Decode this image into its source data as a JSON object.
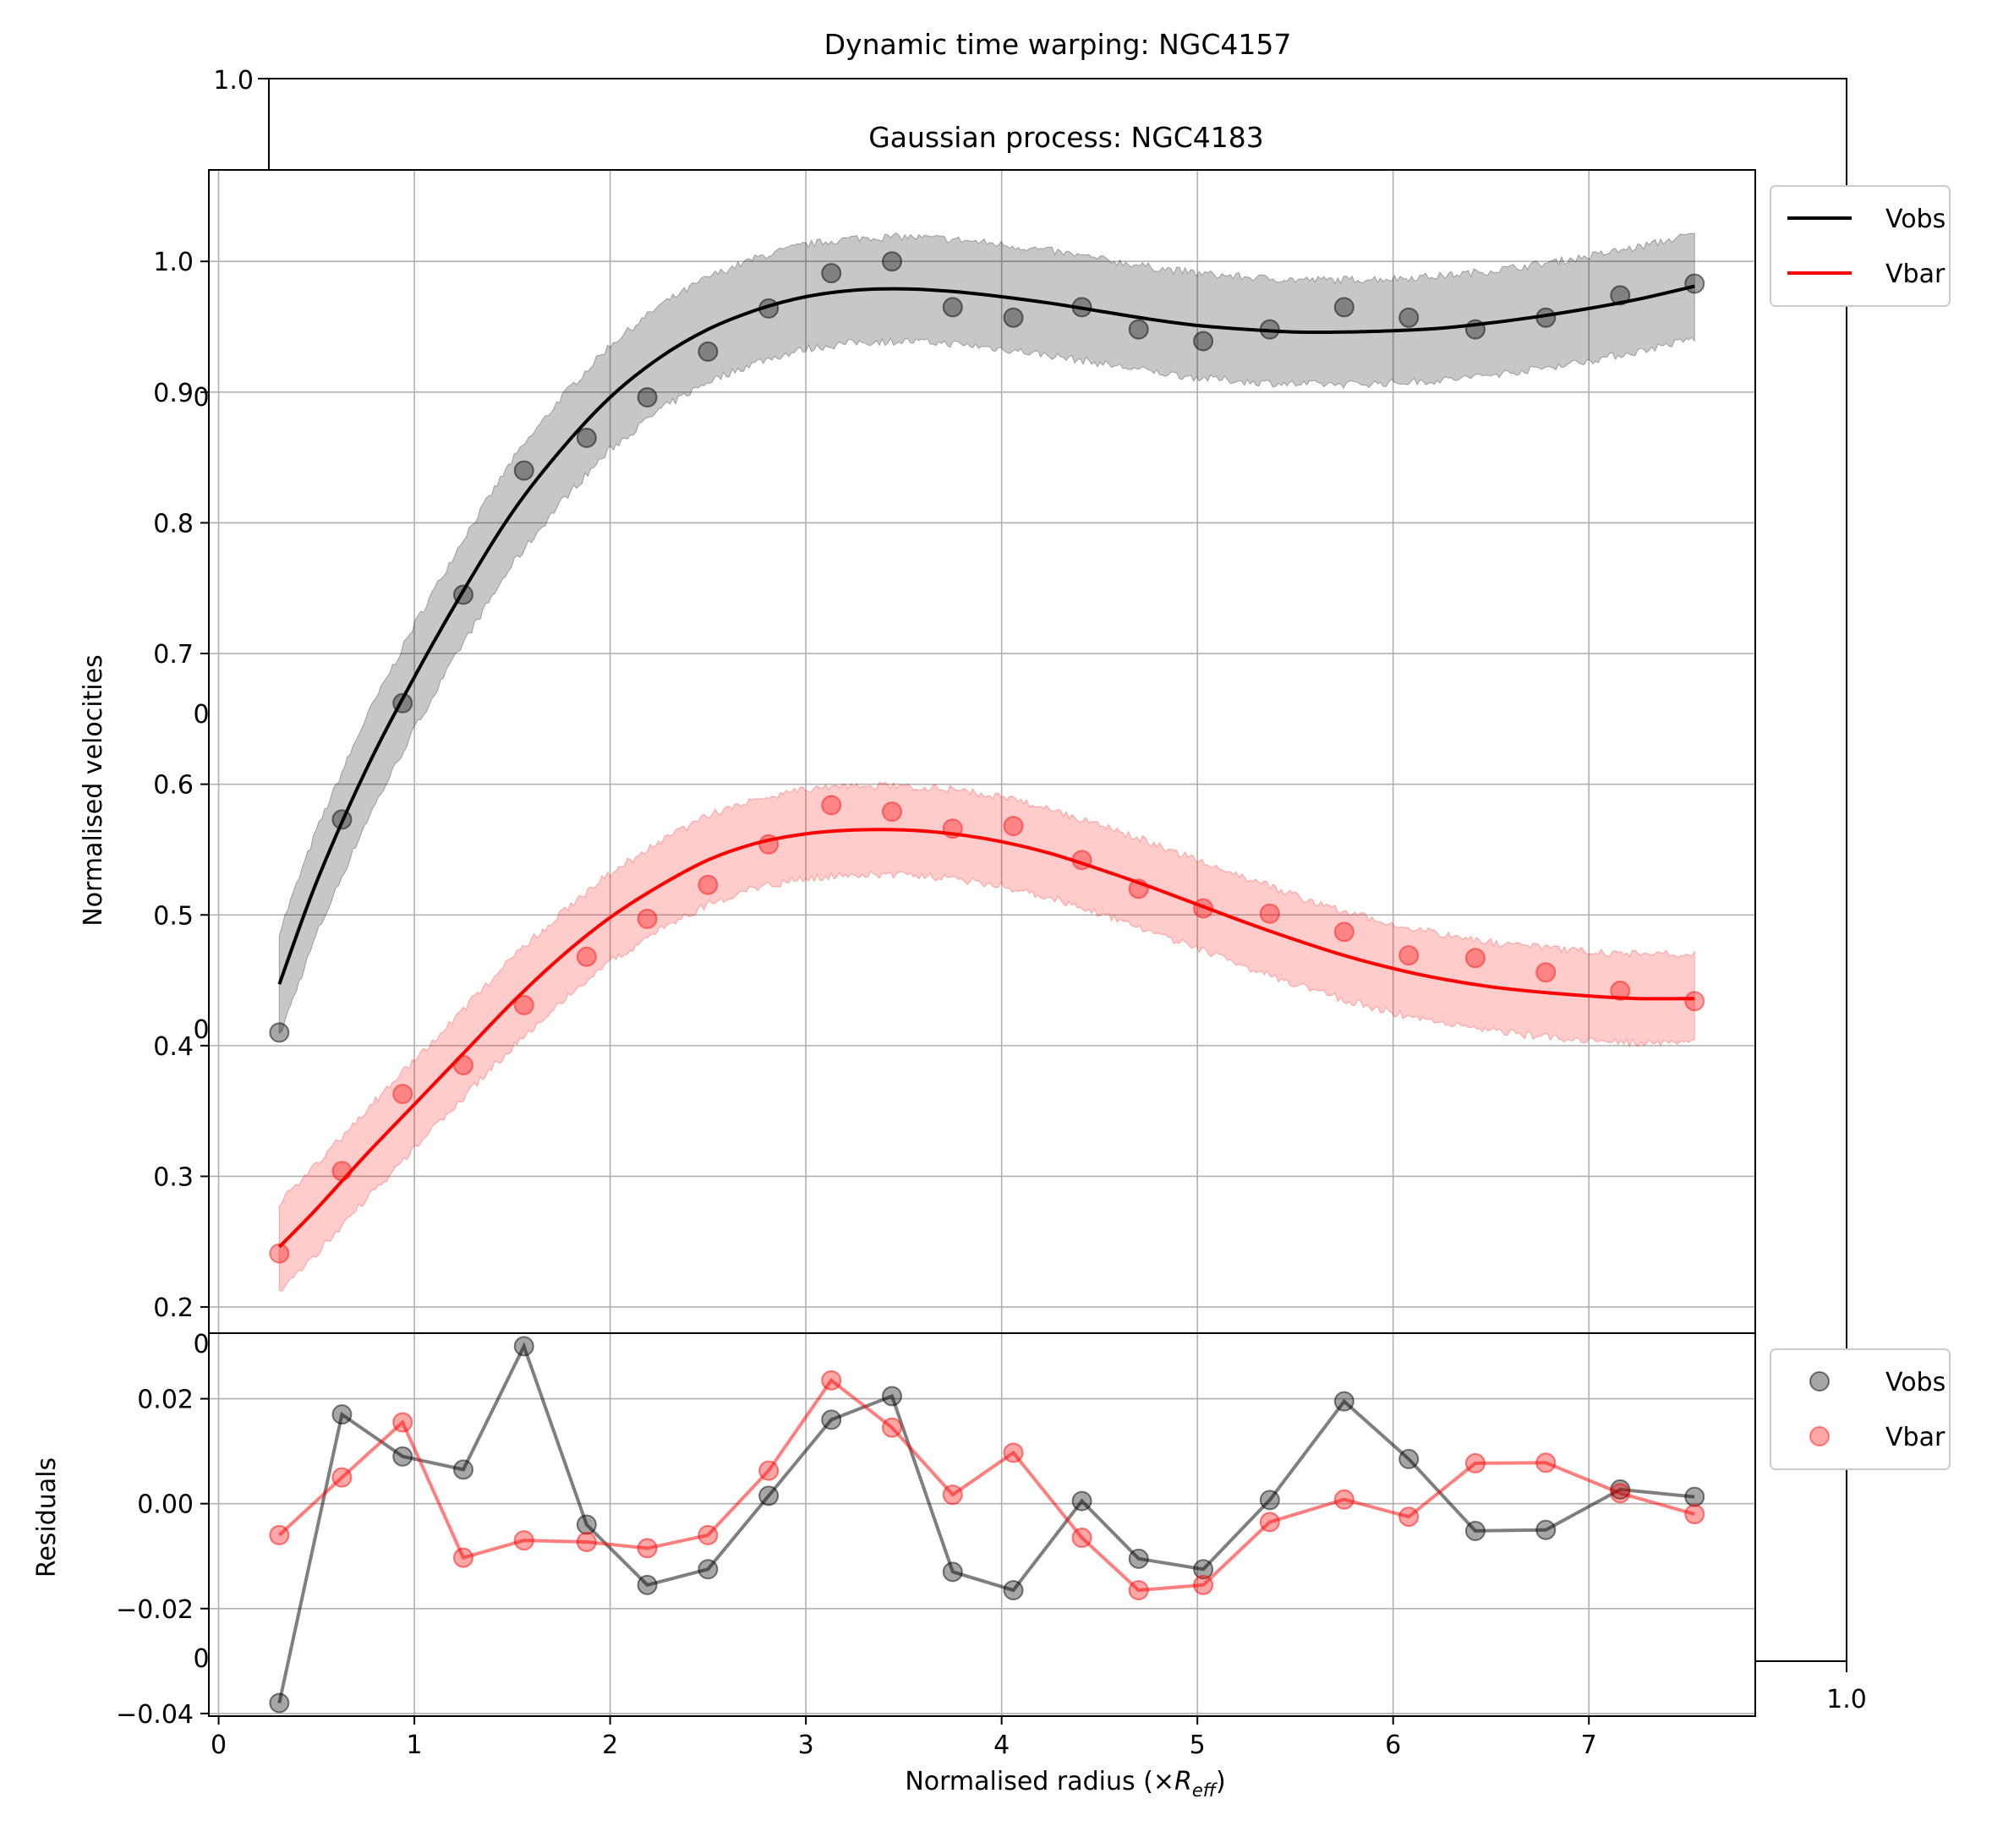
{
  "chart_data": [
    {
      "type": "line",
      "panel": "background",
      "title": "Dynamic time warping: NGC4157",
      "corner_tick_labels": {
        "top_left": "1.0",
        "bottom_right": "1.0"
      },
      "hidden_tick_label_glyph": "0"
    },
    {
      "type": "line",
      "panel": "main",
      "title": "Gaussian process: NGC4183",
      "xlabel": "Normalised radius (×R_eff)",
      "xlabel_parts": {
        "prefix": "Normalised radius (×",
        "main": "R",
        "sub": "eff",
        "suffix": ")"
      },
      "ylabel": "Normalised velocities",
      "xlim": [
        -0.05,
        7.85
      ],
      "ylim": [
        0.18,
        1.07
      ],
      "xticks": [
        0,
        1,
        2,
        3,
        4,
        5,
        6,
        7
      ],
      "xtick_labels": [
        "0",
        "1",
        "2",
        "3",
        "4",
        "5",
        "6",
        "7"
      ],
      "yticks": [
        0.2,
        0.3,
        0.4,
        0.5,
        0.6,
        0.7,
        0.8,
        0.9,
        1.0
      ],
      "ytick_labels": [
        "0.2",
        "0.3",
        "0.4",
        "0.5",
        "0.6",
        "0.7",
        "0.8",
        "0.9",
        "1.0"
      ],
      "grid": true,
      "legend": {
        "position": "outside-top-right",
        "entries": [
          "Vobs",
          "Vbar"
        ]
      },
      "x": [
        0.31,
        0.63,
        0.94,
        1.25,
        1.56,
        1.88,
        2.19,
        2.5,
        2.81,
        3.13,
        3.44,
        3.75,
        4.06,
        4.41,
        4.7,
        5.03,
        5.37,
        5.75,
        6.08,
        6.42,
        6.78,
        7.16,
        7.54
      ],
      "series": [
        {
          "name": "Vobs",
          "color": "#000000",
          "points": [
            0.41,
            0.573,
            0.662,
            0.745,
            0.84,
            0.865,
            0.896,
            0.931,
            0.964,
            0.991,
            1.0,
            0.965,
            0.957,
            0.965,
            0.948,
            0.939,
            0.948,
            0.965,
            0.957,
            0.948,
            0.957,
            0.974,
            0.983
          ],
          "fit_x": [
            0.31,
            0.5,
            0.75,
            1.0,
            1.25,
            1.5,
            1.75,
            2.0,
            2.25,
            2.5,
            2.75,
            3.0,
            3.25,
            3.5,
            3.75,
            4.0,
            4.25,
            4.5,
            4.75,
            5.0,
            5.25,
            5.5,
            5.75,
            6.0,
            6.25,
            6.5,
            6.75,
            7.0,
            7.25,
            7.54
          ],
          "fit": [
            0.447,
            0.525,
            0.61,
            0.682,
            0.748,
            0.808,
            0.856,
            0.896,
            0.926,
            0.948,
            0.963,
            0.973,
            0.978,
            0.979,
            0.977,
            0.973,
            0.968,
            0.962,
            0.956,
            0.951,
            0.948,
            0.946,
            0.946,
            0.947,
            0.949,
            0.953,
            0.958,
            0.964,
            0.971,
            0.981
          ],
          "band_halfwidth": 0.04
        },
        {
          "name": "Vbar",
          "color": "#ff0000",
          "points": [
            0.241,
            0.304,
            0.363,
            0.385,
            0.431,
            0.468,
            0.497,
            0.523,
            0.554,
            0.584,
            0.579,
            0.566,
            0.568,
            0.542,
            0.52,
            0.505,
            0.501,
            0.487,
            0.469,
            0.467,
            0.456,
            0.442,
            0.434
          ],
          "fit_x": [
            0.31,
            0.5,
            0.75,
            1.0,
            1.25,
            1.5,
            1.75,
            2.0,
            2.25,
            2.5,
            2.75,
            3.0,
            3.25,
            3.5,
            3.75,
            4.0,
            4.25,
            4.5,
            4.75,
            5.0,
            5.25,
            5.5,
            5.75,
            6.0,
            6.25,
            6.5,
            6.75,
            7.0,
            7.25,
            7.54
          ],
          "fit": [
            0.246,
            0.275,
            0.316,
            0.355,
            0.394,
            0.433,
            0.468,
            0.498,
            0.522,
            0.542,
            0.555,
            0.562,
            0.565,
            0.565,
            0.562,
            0.556,
            0.547,
            0.535,
            0.522,
            0.508,
            0.494,
            0.481,
            0.469,
            0.459,
            0.451,
            0.445,
            0.441,
            0.438,
            0.436,
            0.436
          ],
          "band_halfwidth": 0.034
        }
      ]
    },
    {
      "type": "line",
      "panel": "residuals",
      "ylabel": "Residuals",
      "xlim": [
        -0.05,
        7.85
      ],
      "ylim": [
        -0.0405,
        0.0325
      ],
      "yticks": [
        -0.04,
        -0.02,
        0.0,
        0.02
      ],
      "ytick_labels": [
        "−0.04",
        "−0.02",
        "0.00",
        "0.02"
      ],
      "grid": true,
      "legend": {
        "position": "outside-right",
        "entries": [
          "Vobs",
          "Vbar"
        ]
      },
      "x": [
        0.31,
        0.63,
        0.94,
        1.25,
        1.56,
        1.88,
        2.19,
        2.5,
        2.81,
        3.13,
        3.44,
        3.75,
        4.06,
        4.41,
        4.7,
        5.03,
        5.37,
        5.75,
        6.08,
        6.42,
        6.78,
        7.16,
        7.54
      ],
      "series": [
        {
          "name": "Vobs",
          "color": "#000000",
          "values": [
            -0.038,
            0.017,
            0.009,
            0.0065,
            0.03,
            -0.004,
            -0.0155,
            -0.0125,
            0.0015,
            0.016,
            0.0205,
            -0.013,
            -0.0165,
            0.0005,
            -0.0105,
            -0.0125,
            0.0007,
            0.0195,
            0.0085,
            -0.0052,
            -0.005,
            0.0027,
            0.0013
          ]
        },
        {
          "name": "Vbar",
          "color": "#ff0000",
          "values": [
            -0.006,
            0.005,
            0.0155,
            -0.0103,
            -0.007,
            -0.0073,
            -0.0085,
            -0.006,
            0.0063,
            0.0235,
            0.0145,
            0.0017,
            0.0097,
            -0.0065,
            -0.0165,
            -0.0155,
            -0.0035,
            0.0008,
            -0.0025,
            0.0077,
            0.0078,
            0.002,
            -0.002
          ]
        }
      ]
    }
  ]
}
